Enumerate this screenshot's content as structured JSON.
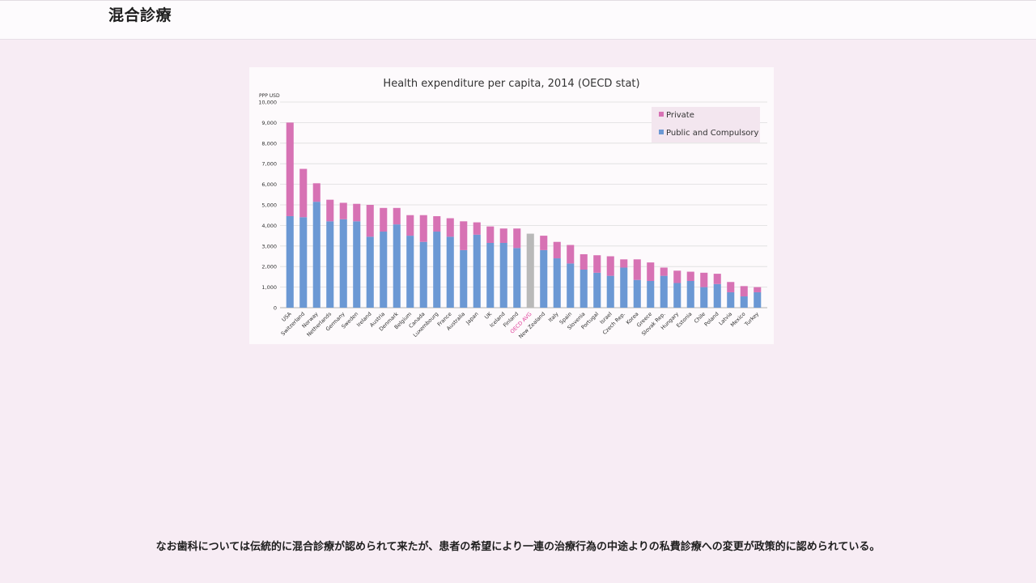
{
  "page": {
    "title": "混合診療",
    "caption": "なお歯科については伝統的に混合診療が認められて来たが、患者の希望により一連の治療行為の中途よりの私費診療への変更が政策的に認められている。"
  },
  "chart_data": {
    "type": "bar",
    "stacked": true,
    "title": "Health expenditure per capita, 2014 (OECD stat)",
    "ylabel": "PPP USD",
    "xlabel": "",
    "ylim": [
      0,
      10000
    ],
    "yticks": [
      "0",
      "1,000",
      "2,000",
      "3,000",
      "4,000",
      "5,000",
      "6,000",
      "7,000",
      "8,000",
      "9,000",
      "10,000"
    ],
    "legend_position": "top-right",
    "grid": true,
    "categories": [
      "USA",
      "Switzerland",
      "Norway",
      "Netherlands",
      "Germany",
      "Sweden",
      "Ireland",
      "Austria",
      "Denmark",
      "Belgium",
      "Canada",
      "Luxembourg",
      "France",
      "Australia",
      "Japan",
      "UK",
      "Iceland",
      "Finland",
      "OECD AVG",
      "New Zealand",
      "Italy",
      "Spain",
      "Slovenia",
      "Portugal",
      "Israel",
      "Czech Rep.",
      "Korea",
      "Greece",
      "Slovak Rep.",
      "Hungary",
      "Estonia",
      "Chile",
      "Poland",
      "Latvia",
      "Mexico",
      "Turkey"
    ],
    "highlight_category": "OECD AVG",
    "series": [
      {
        "name": "Private",
        "color": "#d772b4",
        "values": [
          4550,
          2350,
          900,
          1050,
          800,
          850,
          1550,
          1150,
          800,
          1000,
          1300,
          750,
          900,
          1400,
          600,
          800,
          700,
          950,
          0,
          700,
          800,
          900,
          750,
          850,
          950,
          400,
          1000,
          900,
          400,
          600,
          450,
          700,
          500,
          500,
          500,
          250
        ]
      },
      {
        "name": "Public and Compulsory",
        "color": "#6b98d4",
        "values": [
          4450,
          4400,
          5150,
          4200,
          4300,
          4200,
          3450,
          3700,
          4050,
          3500,
          3200,
          3700,
          3450,
          2800,
          3550,
          3150,
          3150,
          2900,
          0,
          2800,
          2400,
          2150,
          1850,
          1700,
          1550,
          1950,
          1350,
          1300,
          1550,
          1200,
          1300,
          1000,
          1150,
          750,
          550,
          750
        ]
      }
    ],
    "oecd_avg_total": 3600,
    "oecd_avg_color": "#b9b9b9"
  }
}
